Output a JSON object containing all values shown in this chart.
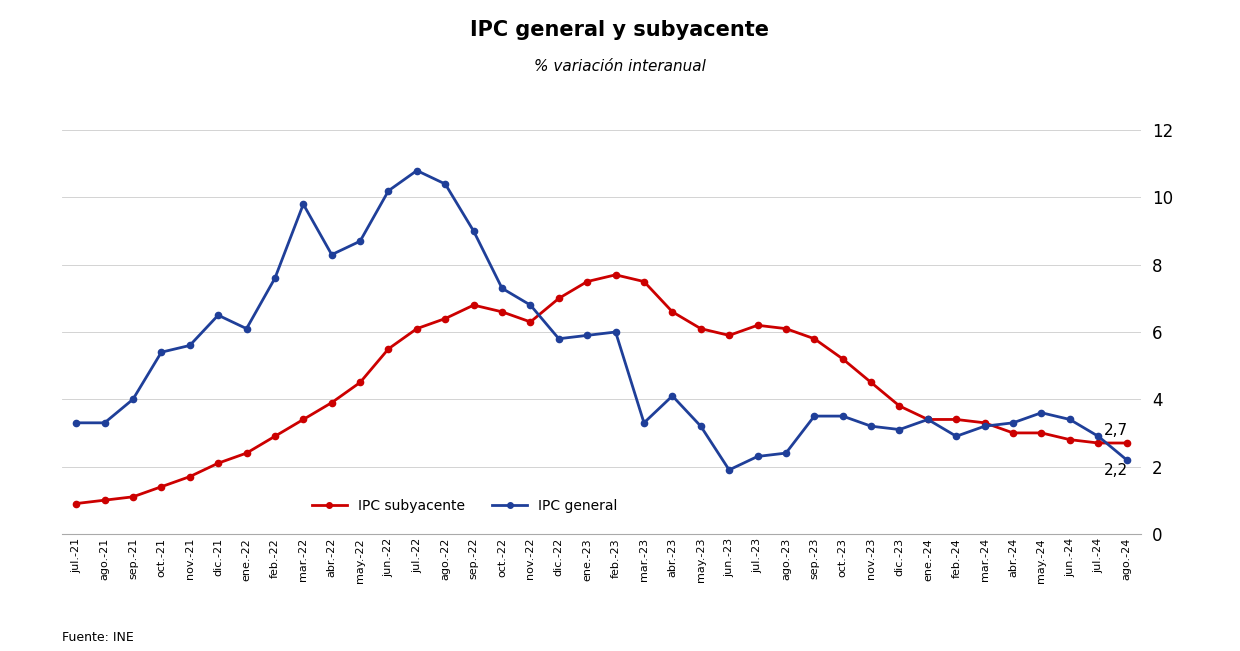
{
  "title": "IPC general y subyacente",
  "subtitle": "% variación interanual",
  "source": "Fuente: INE",
  "legend_subyacente": "IPC subyacente",
  "legend_general": "IPC general",
  "color_subyacente": "#CC0000",
  "color_general": "#1F3F99",
  "annotation_subyacente": "2,7",
  "annotation_general": "2,2",
  "xlabels": [
    "jul.-21",
    "ago.-21",
    "sep.-21",
    "oct.-21",
    "nov.-21",
    "dic.-21",
    "ene.-22",
    "feb.-22",
    "mar.-22",
    "abr.-22",
    "may.-22",
    "jun.-22",
    "jul.-22",
    "ago.-22",
    "sep.-22",
    "oct.-22",
    "nov.-22",
    "dic.-22",
    "ene.-23",
    "feb.-23",
    "mar.-23",
    "abr.-23",
    "may.-23",
    "jun.-23",
    "jul.-23",
    "ago.-23",
    "sep.-23",
    "oct.-23",
    "nov.-23",
    "dic.-23",
    "ene.-24",
    "feb.-24",
    "mar.-24",
    "abr.-24",
    "may.-24",
    "jun.-24",
    "jul.-24",
    "ago.-24"
  ],
  "ipc_subyacente": [
    0.9,
    1.0,
    1.1,
    1.4,
    1.7,
    2.1,
    2.4,
    2.9,
    3.4,
    3.9,
    4.5,
    5.5,
    6.1,
    6.4,
    6.8,
    6.6,
    6.3,
    7.0,
    7.5,
    7.7,
    7.5,
    6.6,
    6.1,
    5.9,
    6.2,
    6.1,
    5.8,
    5.2,
    4.5,
    3.8,
    3.4,
    3.4,
    3.3,
    3.0,
    3.0,
    2.8,
    2.7,
    2.7
  ],
  "ipc_general": [
    3.3,
    3.3,
    4.0,
    5.4,
    5.6,
    6.5,
    6.1,
    7.6,
    9.8,
    8.3,
    8.7,
    10.2,
    10.8,
    10.4,
    9.0,
    7.3,
    6.8,
    5.8,
    5.9,
    6.0,
    3.3,
    4.1,
    3.2,
    1.9,
    2.3,
    2.4,
    3.5,
    3.5,
    3.2,
    3.1,
    3.4,
    2.9,
    3.2,
    3.3,
    3.6,
    3.4,
    2.9,
    2.2
  ],
  "ylim": [
    0,
    12
  ],
  "yticks": [
    0,
    2,
    4,
    6,
    8,
    10,
    12
  ],
  "background_color": "#ffffff"
}
